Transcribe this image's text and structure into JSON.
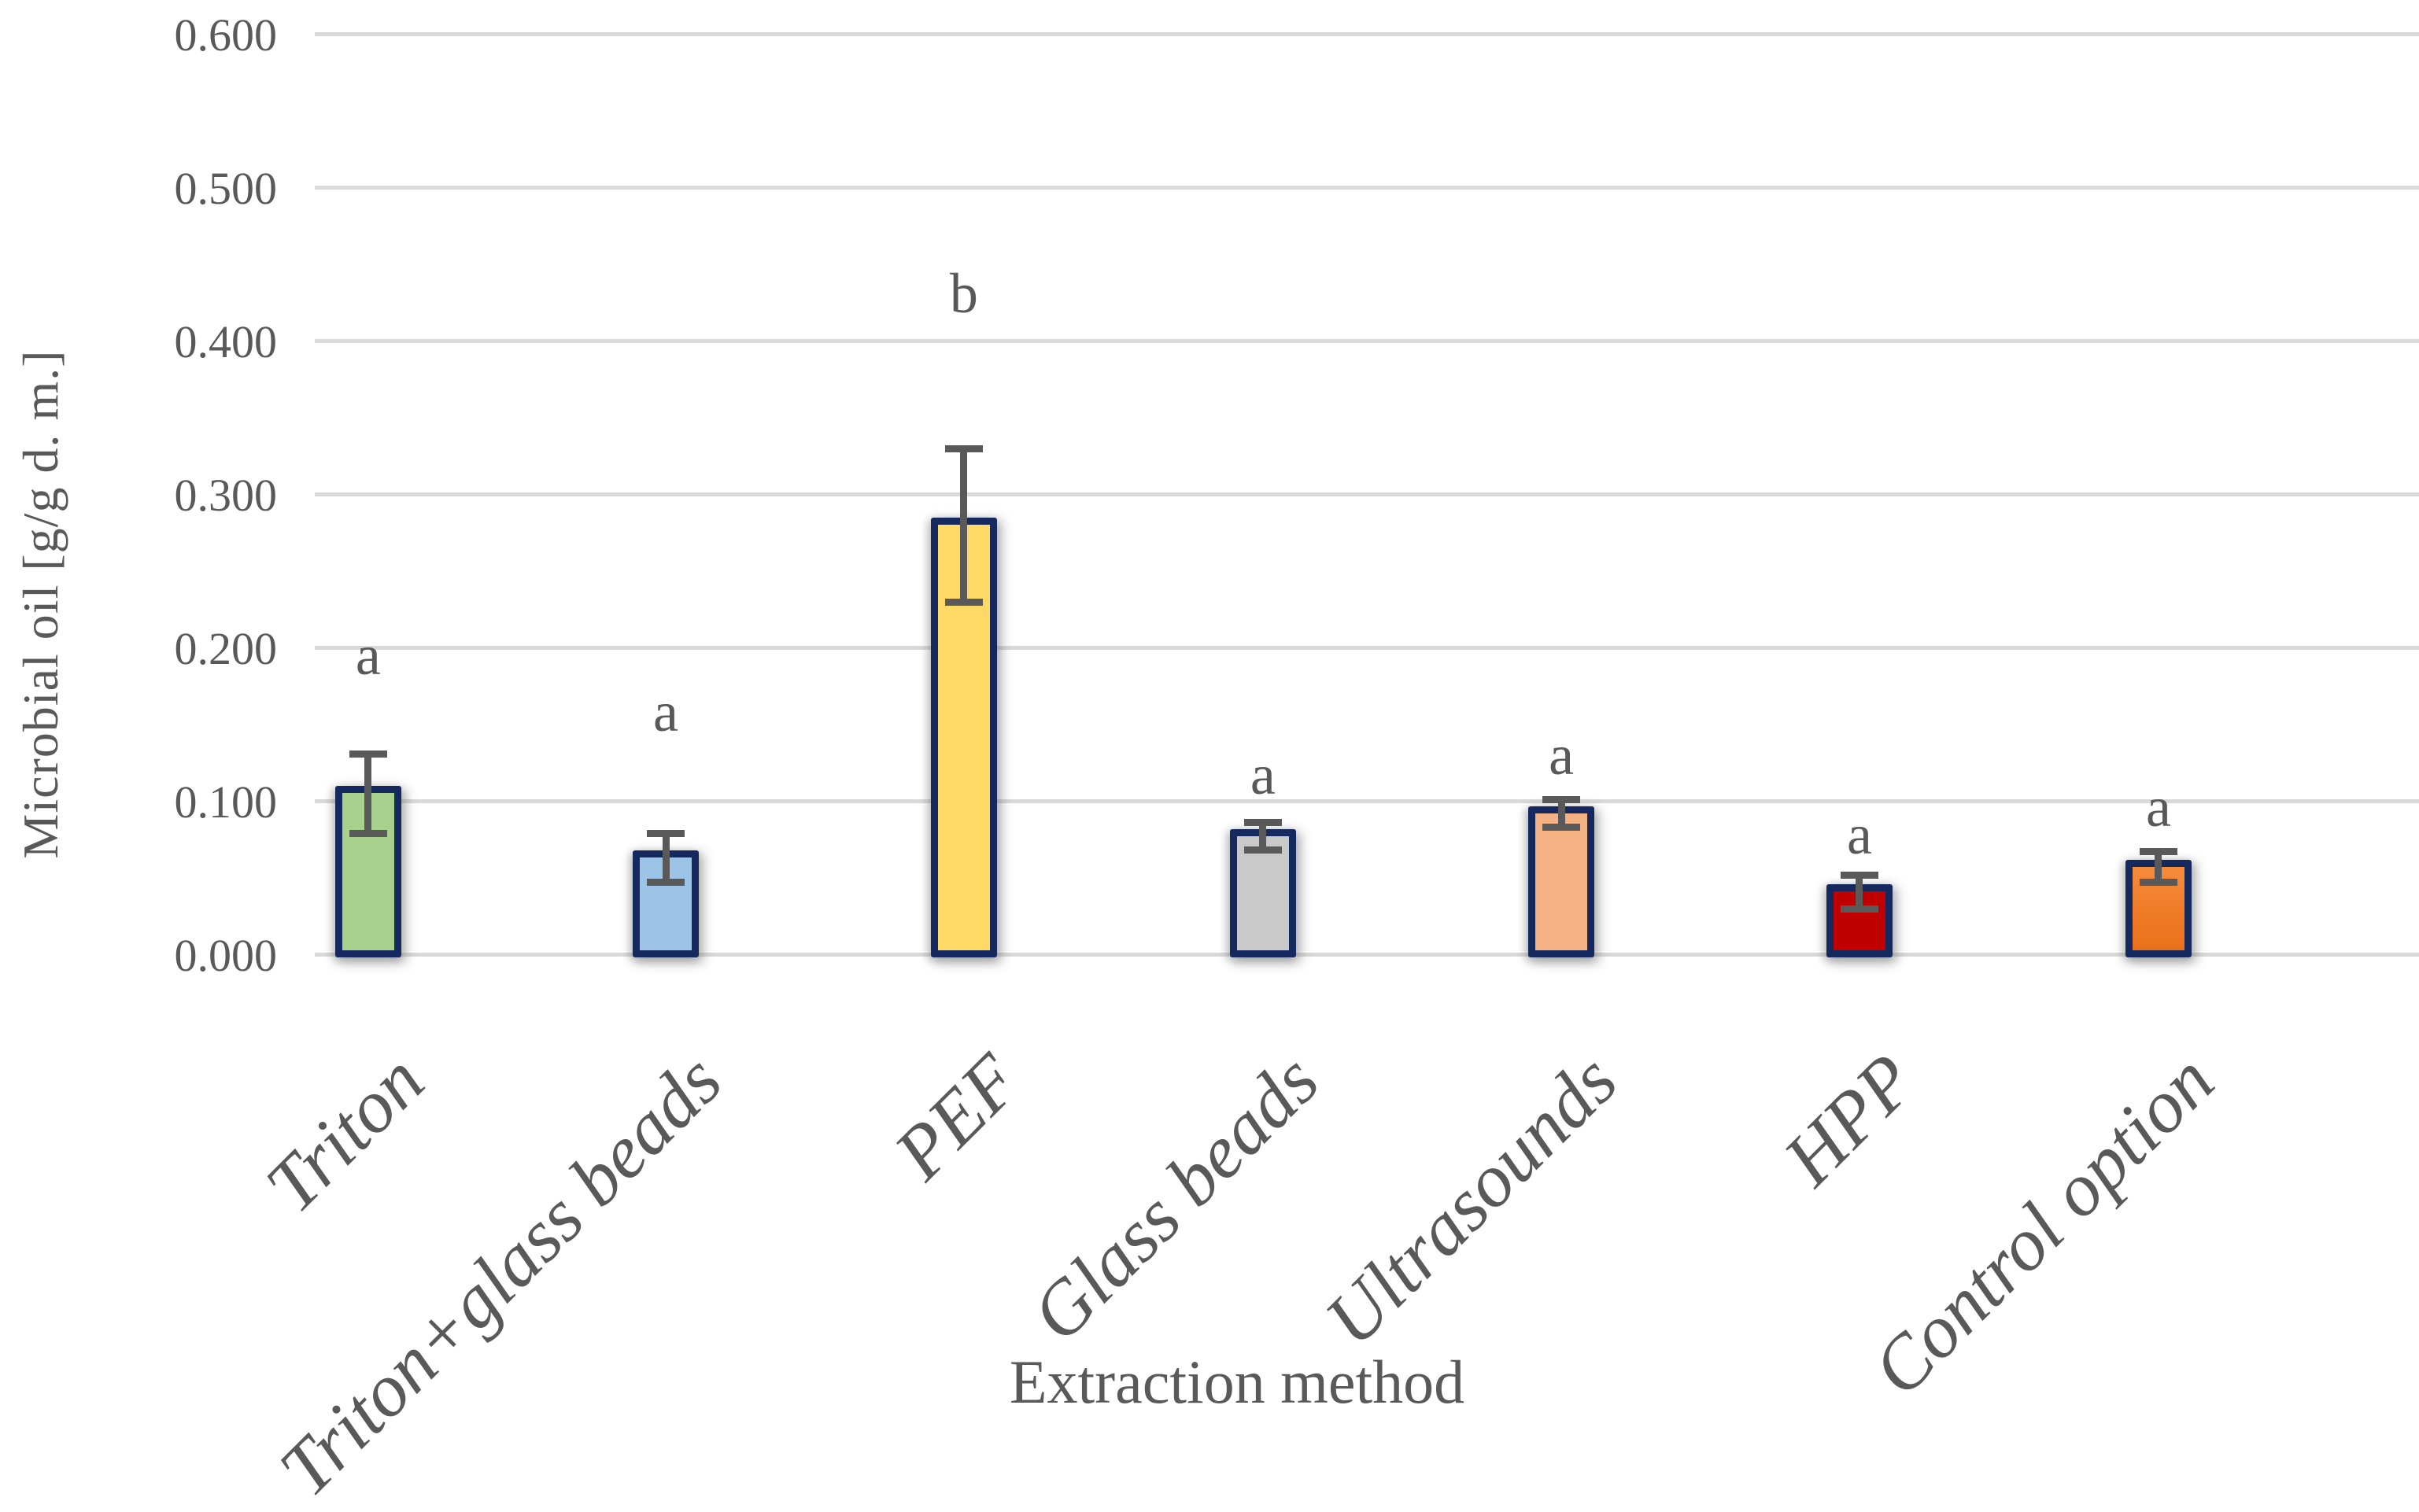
{
  "chart_data": {
    "type": "bar",
    "title": "",
    "xlabel": "Extraction method",
    "ylabel": "Microbial oil [g/g d. m.]",
    "ylim": [
      0.0,
      0.6
    ],
    "ytick_step": 0.1,
    "ytick_labels": [
      "0.600",
      "0.500",
      "0.400",
      "0.300",
      "0.200",
      "0.100",
      "0.000"
    ],
    "grid": "horizontal gridlines on",
    "legend": "none",
    "categories": [
      "Triton",
      "Triton+glass beads",
      "PEF",
      "Glass beads",
      "Ultrasounds",
      "HPP",
      "Control option"
    ],
    "values": [
      0.105,
      0.063,
      0.28,
      0.077,
      0.092,
      0.041,
      0.057
    ],
    "error_bars": [
      0.026,
      0.016,
      0.05,
      0.009,
      0.009,
      0.011,
      0.01
    ],
    "significance_letters": [
      "a",
      "a",
      "b",
      "a",
      "a",
      "a",
      "a"
    ],
    "letter_y_values": [
      0.195,
      0.158,
      0.431,
      0.117,
      0.13,
      0.078,
      0.096
    ],
    "bar_fill_colors": [
      "#A9D18E",
      "#9DC3E6",
      "#FFD966",
      "#C9C9C9",
      "#F4B183",
      "#C00000",
      "#ED7D31"
    ],
    "bar_fill_gradient_top": [
      null,
      null,
      null,
      null,
      null,
      null,
      "#F68B3C"
    ],
    "bar_fill_gradient_bottom": [
      null,
      null,
      null,
      null,
      null,
      null,
      "#E9701A"
    ],
    "bar_border_color": "#15295F",
    "error_bar_color": "#595959",
    "gridline_color": "#D9D9D9",
    "text_color": "#595959",
    "bar_center_fractions": [
      0.0254,
      0.1668,
      0.3085,
      0.4506,
      0.5924,
      0.7341,
      0.8762
    ]
  }
}
